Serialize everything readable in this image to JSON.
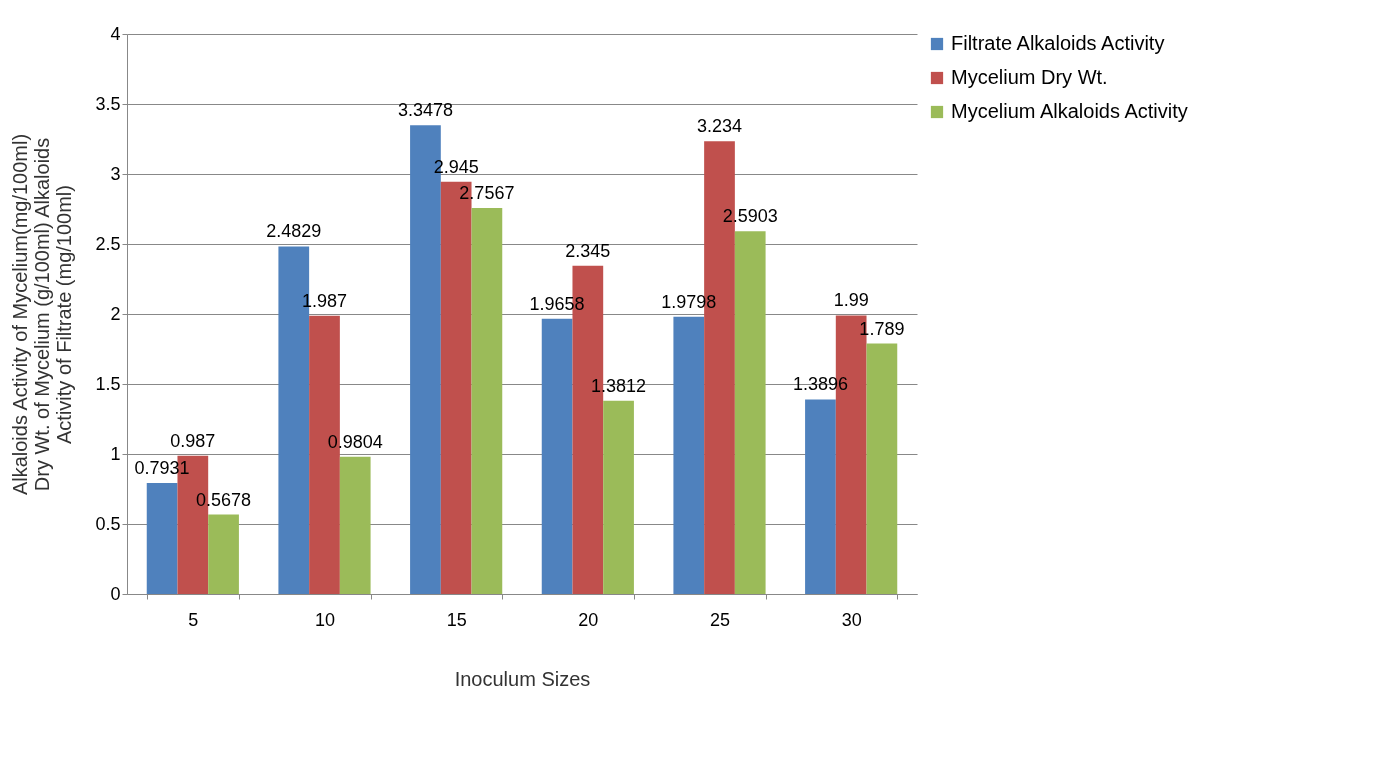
{
  "chart_data": {
    "type": "bar",
    "xlabel": "Inoculum Sizes",
    "ylabel": "Alkaloids Activity of Mycelium(mg/100ml) Dry Wt. of Mycelium (g/100ml) Alkaloids Activity of Filtrate (mg/100ml)",
    "categories": [
      "5",
      "10",
      "15",
      "20",
      "25",
      "30"
    ],
    "series": [
      {
        "name": "Filtrate Alkaloids Activity",
        "color": "#4f81bd",
        "values": [
          0.7931,
          2.4829,
          3.3478,
          1.9658,
          1.9798,
          1.3896
        ]
      },
      {
        "name": "Mycelium Dry Wt.",
        "color": "#c0504d",
        "values": [
          0.987,
          1.987,
          2.945,
          2.345,
          3.234,
          1.99
        ]
      },
      {
        "name": "Mycelium Alkaloids Activity",
        "color": "#9bbb59",
        "values": [
          0.5678,
          0.9804,
          2.7567,
          1.3812,
          2.5903,
          1.789
        ]
      }
    ],
    "ylim": [
      0,
      4
    ],
    "yticks": [
      0,
      0.5,
      1,
      1.5,
      2,
      2.5,
      3,
      3.5,
      4
    ],
    "grid": "y",
    "legend": "right",
    "data_labels": true
  }
}
